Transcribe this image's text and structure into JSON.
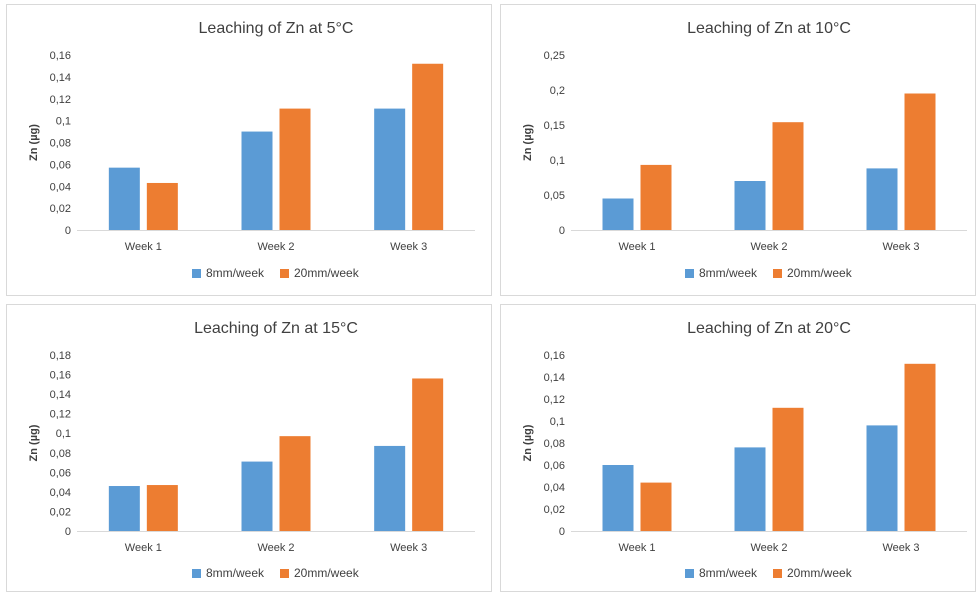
{
  "colors": {
    "series_8mm": "#5b9bd5",
    "series_20mm": "#ed7d31",
    "grid": "#d9d9d9",
    "text": "#404040"
  },
  "chart_data": [
    {
      "type": "bar",
      "title": "Leaching of Zn at 5°C",
      "ylabel": "Zn (µg)",
      "xlabel": "",
      "categories": [
        "Week 1",
        "Week 2",
        "Week 3"
      ],
      "ylim": [
        0,
        0.16
      ],
      "yticks": [
        "0",
        "0,02",
        "0,04",
        "0,06",
        "0,08",
        "0,1",
        "0,12",
        "0,14",
        "0,16"
      ],
      "series": [
        {
          "name": "8mm/week",
          "values": [
            0.057,
            0.09,
            0.111
          ]
        },
        {
          "name": "20mm/week",
          "values": [
            0.043,
            0.111,
            0.152
          ]
        }
      ],
      "legend": "bottom",
      "grid": false
    },
    {
      "type": "bar",
      "title": "Leaching of Zn at 10°C",
      "ylabel": "Zn (µg)",
      "xlabel": "",
      "categories": [
        "Week 1",
        "Week 2",
        "Week 3"
      ],
      "ylim": [
        0,
        0.25
      ],
      "yticks": [
        "0",
        "0,05",
        "0,1",
        "0,15",
        "0,2",
        "0,25"
      ],
      "series": [
        {
          "name": "8mm/week",
          "values": [
            0.045,
            0.07,
            0.088
          ]
        },
        {
          "name": "20mm/week",
          "values": [
            0.093,
            0.154,
            0.195
          ]
        }
      ],
      "legend": "bottom",
      "grid": false
    },
    {
      "type": "bar",
      "title": "Leaching of Zn at 15°C",
      "ylabel": "Zn (µg)",
      "xlabel": "",
      "categories": [
        "Week 1",
        "Week 2",
        "Week 3"
      ],
      "ylim": [
        0,
        0.18
      ],
      "yticks": [
        "0",
        "0,02",
        "0,04",
        "0,06",
        "0,08",
        "0,1",
        "0,12",
        "0,14",
        "0,16",
        "0,18"
      ],
      "series": [
        {
          "name": "8mm/week",
          "values": [
            0.046,
            0.071,
            0.087
          ]
        },
        {
          "name": "20mm/week",
          "values": [
            0.047,
            0.097,
            0.156
          ]
        }
      ],
      "legend": "bottom",
      "grid": false
    },
    {
      "type": "bar",
      "title": "Leaching of Zn at 20°C",
      "ylabel": "Zn (µg)",
      "xlabel": "",
      "categories": [
        "Week 1",
        "Week 2",
        "Week 3"
      ],
      "ylim": [
        0,
        0.16
      ],
      "yticks": [
        "0",
        "0,02",
        "0,04",
        "0,06",
        "0,08",
        "0,1",
        "0,12",
        "0,14",
        "0,16"
      ],
      "series": [
        {
          "name": "8mm/week",
          "values": [
            0.06,
            0.076,
            0.096
          ]
        },
        {
          "name": "20mm/week",
          "values": [
            0.044,
            0.112,
            0.152
          ]
        }
      ],
      "legend": "bottom",
      "grid": false
    }
  ]
}
